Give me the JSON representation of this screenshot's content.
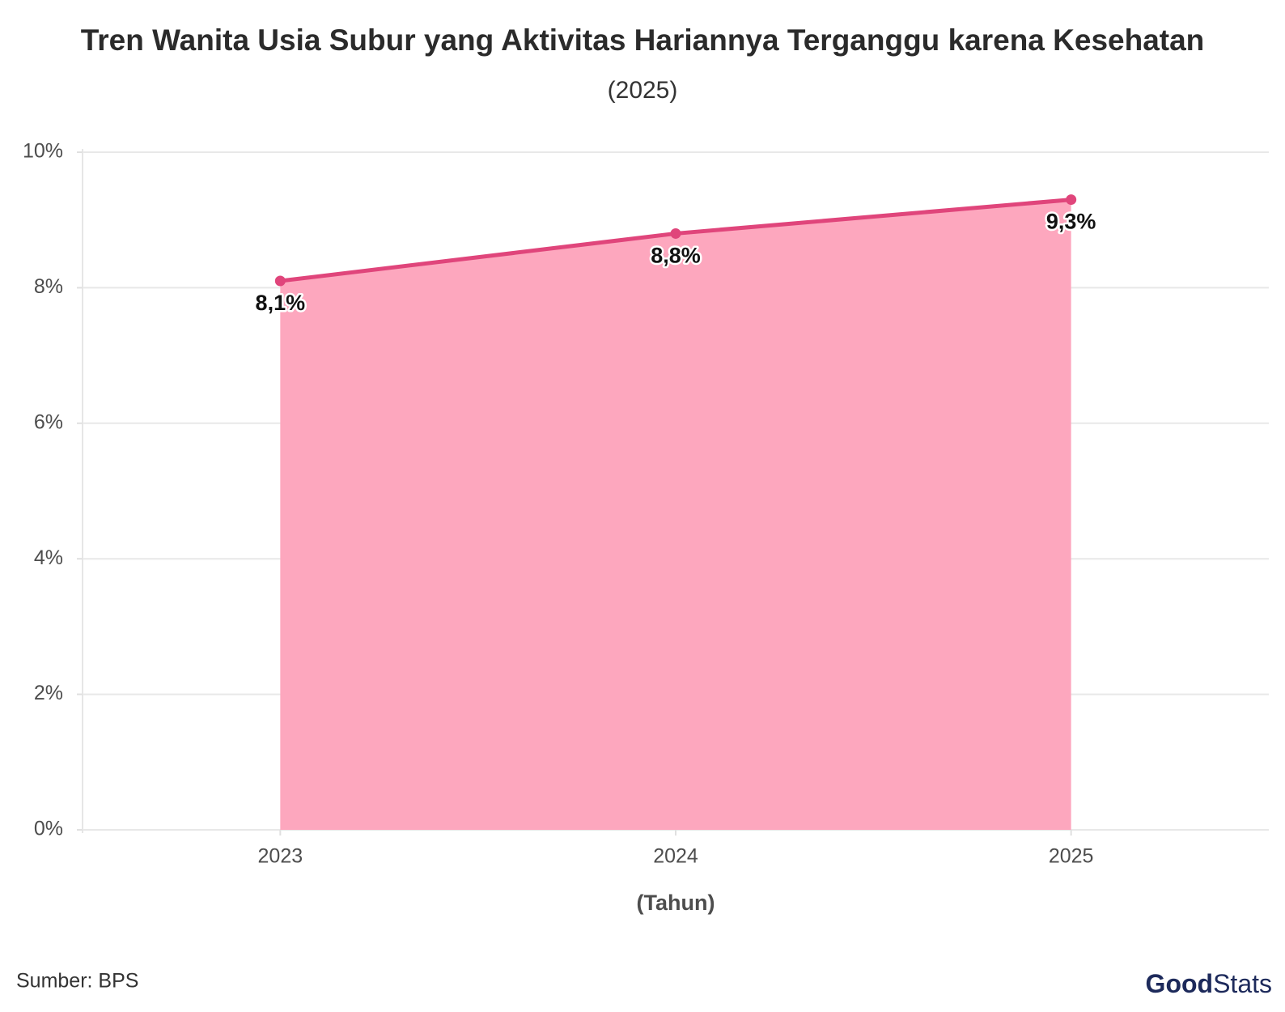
{
  "chart_data": {
    "type": "area",
    "title": "Tren Wanita Usia Subur yang Aktivitas Hariannya Terganggu karena Kesehatan",
    "subtitle": "(2025)",
    "x_label": "(Tahun)",
    "categories": [
      "2023",
      "2024",
      "2025"
    ],
    "values": [
      8.1,
      8.8,
      9.3
    ],
    "value_labels": [
      "8,1%",
      "8,8%",
      "9,3%"
    ],
    "line_color": "#e0457b",
    "fill_color": "#fda7be",
    "ylim": [
      0,
      10
    ],
    "yticks": [
      {
        "value": 0,
        "label": "0%"
      },
      {
        "value": 2,
        "label": "2%"
      },
      {
        "value": 4,
        "label": "4%"
      },
      {
        "value": 6,
        "label": "6%"
      },
      {
        "value": 8,
        "label": "8%"
      },
      {
        "value": 10,
        "label": "10%"
      }
    ],
    "grid": true
  },
  "source": "Sumber: BPS",
  "logo": {
    "part1": "Good",
    "part2": "Stats"
  }
}
